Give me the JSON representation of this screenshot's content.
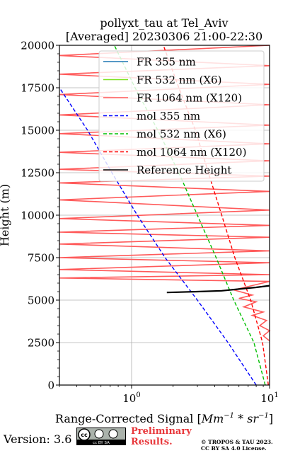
{
  "chart_data": {
    "type": "line",
    "title": "pollyxt_tau at Tel_Aviv",
    "subtitle": "[Averaged] 20230306 21:00-22:30",
    "xlabel": "Range-Corrected Signal [Mm^-1 * sr^-1]",
    "xlabel_parts": {
      "prefix": "Range-Corrected Signal [",
      "expr_a": "Mm",
      "exp": "−1",
      "star": " * ",
      "expr_b": "sr",
      "exp2": "−1",
      "suffix": "]"
    },
    "ylabel": "Height (m)",
    "xscale": "log",
    "xlim": [
      0.3,
      10
    ],
    "ylim": [
      0,
      20000
    ],
    "yticks": [
      "0",
      "2500",
      "5000",
      "7500",
      "10000",
      "12500",
      "15000",
      "17500",
      "20000"
    ],
    "xticks": [
      {
        "base": "10",
        "exp": "0",
        "value": 1
      },
      {
        "base": "10",
        "exp": "1",
        "value": 10
      }
    ],
    "grid": true,
    "legend_position": "top-right",
    "legend": [
      {
        "label": "FR 355 nm",
        "color": "#1f77b4",
        "style": "solid"
      },
      {
        "label": "FR 532 nm (X6)",
        "color": "#7fe01e",
        "style": "solid"
      },
      {
        "label": "FR 1064 nm (X120)",
        "color": "#ff5a5a",
        "style": "solid"
      },
      {
        "label": "mol 355 nm",
        "color": "#0000ff",
        "style": "dashed"
      },
      {
        "label": "mol 532 nm (X6)",
        "color": "#00bf00",
        "style": "dashed"
      },
      {
        "label": "mol 1064 nm (X120)",
        "color": "#ff0000",
        "style": "dashed"
      },
      {
        "label": "Reference Height",
        "color": "#000000",
        "style": "solid"
      }
    ],
    "series": [
      {
        "name": "mol 355 nm",
        "color": "#0000ff",
        "style": "dashed",
        "points": [
          [
            8.0,
            0
          ],
          [
            5.0,
            2500
          ],
          [
            3.0,
            5000
          ],
          [
            1.75,
            7500
          ],
          [
            1.1,
            10000
          ],
          [
            0.72,
            12500
          ],
          [
            0.48,
            15000
          ],
          [
            0.3,
            17500
          ]
        ]
      },
      {
        "name": "mol 532 nm (X6)",
        "color": "#00bf00",
        "style": "dashed",
        "points": [
          [
            9.3,
            0
          ],
          [
            7.7,
            2500
          ],
          [
            5.5,
            5000
          ],
          [
            4.1,
            7500
          ],
          [
            3.0,
            10000
          ],
          [
            2.2,
            12500
          ],
          [
            1.55,
            15000
          ],
          [
            1.06,
            17500
          ],
          [
            0.75,
            20000
          ]
        ]
      },
      {
        "name": "mol 1064 nm (X120)",
        "color": "#ff0000",
        "style": "dashed",
        "points": [
          [
            9.8,
            0
          ],
          [
            8.9,
            2500
          ],
          [
            7.3,
            5000
          ],
          [
            5.6,
            7500
          ],
          [
            4.5,
            10000
          ],
          [
            3.6,
            12500
          ],
          [
            2.9,
            15000
          ],
          [
            2.2,
            17500
          ],
          [
            1.7,
            20000
          ]
        ]
      },
      {
        "name": "FR 1064 nm (X120)",
        "color": "#ff5a5a",
        "style": "solid",
        "points": [
          [
            10,
            2600
          ],
          [
            9.0,
            2900
          ],
          [
            10,
            3200
          ],
          [
            8.5,
            3500
          ],
          [
            9.5,
            3800
          ],
          [
            7.5,
            4100
          ],
          [
            9.0,
            4300
          ],
          [
            6.5,
            4600
          ],
          [
            8.0,
            4900
          ],
          [
            6.0,
            5100
          ],
          [
            7.5,
            5300
          ],
          [
            5.5,
            5600
          ],
          [
            10,
            6100
          ],
          [
            0.3,
            6300
          ],
          [
            10,
            6500
          ],
          [
            0.3,
            6800
          ],
          [
            10,
            7200
          ],
          [
            0.3,
            7500
          ],
          [
            10,
            7900
          ],
          [
            0.3,
            8300
          ],
          [
            10,
            8700
          ],
          [
            0.3,
            9000
          ],
          [
            10,
            9400
          ],
          [
            0.3,
            9800
          ],
          [
            10,
            10300
          ],
          [
            0.3,
            10900
          ],
          [
            10,
            11400
          ],
          [
            0.3,
            11900
          ],
          [
            10,
            12300
          ],
          [
            0.3,
            12700
          ],
          [
            10,
            13200
          ],
          [
            0.3,
            13700
          ],
          [
            10,
            14200
          ],
          [
            0.3,
            14800
          ],
          [
            10,
            15300
          ],
          [
            0.3,
            15900
          ],
          [
            10,
            16500
          ],
          [
            0.3,
            17100
          ],
          [
            10,
            17700
          ],
          [
            0.3,
            18300
          ],
          [
            10,
            18800
          ],
          [
            0.3,
            19400
          ],
          [
            10,
            20000
          ]
        ]
      },
      {
        "name": "Reference Height",
        "color": "#000000",
        "style": "solid",
        "points": [
          [
            1.8,
            5450
          ],
          [
            3.0,
            5500
          ],
          [
            4.5,
            5550
          ],
          [
            6.0,
            5650
          ],
          [
            8.0,
            5750
          ],
          [
            10,
            5850
          ]
        ]
      }
    ]
  },
  "footer": {
    "version": "Version: 3.6",
    "cc_text": "cc  BY  SA",
    "preliminary_line1": "Preliminary",
    "preliminary_line2": "Results.",
    "copyright_line1": "© TROPOS & TAU 2023.",
    "copyright_line2": "CC BY SA 4.0 License."
  }
}
